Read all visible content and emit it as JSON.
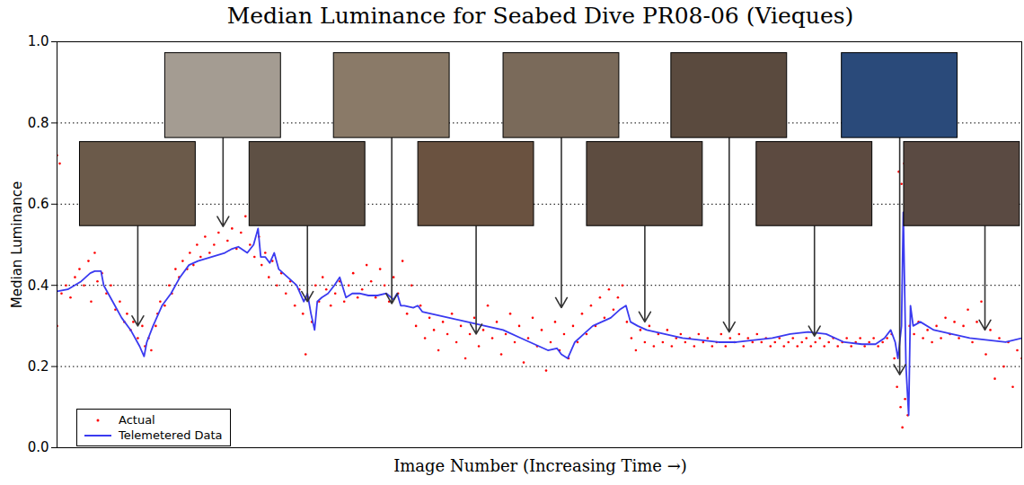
{
  "chart_data": {
    "type": "scatter",
    "title": "Median Luminance for Seabed Dive PR08-06 (Vieques)",
    "x_label": "Image Number (Increasing Time →)",
    "y_label": "Median Luminance",
    "xlim": [
      0,
      1075
    ],
    "xticks": [],
    "ylim": [
      0,
      1
    ],
    "yticks": [
      {
        "value": 0,
        "label": "0.0"
      },
      {
        "value": 0.2,
        "label": "0.2"
      },
      {
        "value": 0.4,
        "label": "0.4"
      },
      {
        "value": 0.6,
        "label": "0.6"
      },
      {
        "value": 0.8,
        "label": "0.8"
      },
      {
        "value": 1,
        "label": "1.0"
      }
    ],
    "grid": true,
    "legend": "lower left",
    "tick_labels": "y",
    "series": [
      {
        "name": "Actual",
        "type": "scatter",
        "color": "#ff0000",
        "marker": "dot",
        "x": [
          0,
          0,
          3,
          5,
          10,
          15,
          20,
          25,
          30,
          35,
          38,
          42,
          45,
          50,
          55,
          60,
          65,
          70,
          75,
          78,
          82,
          85,
          90,
          95,
          98,
          102,
          105,
          110,
          112,
          115,
          120,
          125,
          128,
          132,
          136,
          140,
          145,
          148,
          152,
          156,
          160,
          165,
          170,
          175,
          180,
          185,
          190,
          195,
          200,
          205,
          210,
          215,
          220,
          225,
          228,
          232,
          236,
          240,
          245,
          250,
          255,
          260,
          265,
          270,
          274,
          277,
          280,
          284,
          288,
          292,
          296,
          300,
          305,
          310,
          315,
          320,
          325,
          330,
          335,
          340,
          345,
          350,
          355,
          360,
          365,
          370,
          375,
          380,
          385,
          390,
          395,
          400,
          405,
          410,
          415,
          420,
          425,
          430,
          435,
          440,
          445,
          450,
          455,
          460,
          465,
          470,
          475,
          480,
          485,
          490,
          495,
          500,
          505,
          510,
          515,
          520,
          525,
          530,
          535,
          540,
          545,
          550,
          555,
          560,
          565,
          570,
          575,
          580,
          585,
          590,
          595,
          600,
          605,
          610,
          615,
          620,
          625,
          630,
          635,
          640,
          645,
          650,
          655,
          660,
          665,
          670,
          675,
          680,
          685,
          690,
          695,
          700,
          705,
          710,
          715,
          720,
          725,
          730,
          735,
          740,
          745,
          750,
          755,
          760,
          765,
          770,
          775,
          780,
          785,
          790,
          795,
          800,
          805,
          810,
          815,
          820,
          825,
          830,
          835,
          840,
          845,
          850,
          855,
          860,
          865,
          870,
          875,
          880,
          885,
          890,
          895,
          900,
          905,
          910,
          915,
          920,
          925,
          930,
          933,
          936,
          938,
          940,
          941,
          942,
          944,
          945,
          946,
          948,
          950,
          955,
          960,
          965,
          970,
          975,
          980,
          985,
          990,
          995,
          1000,
          1005,
          1010,
          1015,
          1020,
          1025,
          1030,
          1035,
          1040,
          1045,
          1050,
          1055,
          1060,
          1065,
          1070,
          1075
        ],
        "values": [
          0.72,
          0.3,
          0.7,
          0.38,
          0.4,
          0.37,
          0.42,
          0.44,
          0.4,
          0.46,
          0.36,
          0.48,
          0.41,
          0.43,
          0.38,
          0.4,
          0.34,
          0.36,
          0.31,
          0.33,
          0.29,
          0.31,
          0.27,
          0.3,
          0.25,
          0.27,
          0.24,
          0.3,
          0.33,
          0.36,
          0.35,
          0.4,
          0.38,
          0.44,
          0.42,
          0.46,
          0.44,
          0.48,
          0.45,
          0.5,
          0.47,
          0.52,
          0.48,
          0.5,
          0.53,
          0.55,
          0.51,
          0.54,
          0.49,
          0.53,
          0.57,
          0.5,
          0.47,
          0.52,
          0.45,
          0.48,
          0.42,
          0.46,
          0.4,
          0.43,
          0.38,
          0.41,
          0.35,
          0.39,
          0.33,
          0.23,
          0.37,
          0.31,
          0.4,
          0.36,
          0.42,
          0.39,
          0.35,
          0.38,
          0.41,
          0.36,
          0.4,
          0.43,
          0.37,
          0.39,
          0.45,
          0.41,
          0.37,
          0.44,
          0.4,
          0.36,
          0.42,
          0.38,
          0.46,
          0.33,
          0.4,
          0.3,
          0.35,
          0.27,
          0.32,
          0.29,
          0.24,
          0.31,
          0.28,
          0.33,
          0.26,
          0.3,
          0.22,
          0.28,
          0.32,
          0.25,
          0.29,
          0.35,
          0.27,
          0.31,
          0.23,
          0.28,
          0.33,
          0.26,
          0.3,
          0.21,
          0.27,
          0.32,
          0.25,
          0.29,
          0.19,
          0.26,
          0.31,
          0.24,
          0.28,
          0.22,
          0.3,
          0.26,
          0.33,
          0.28,
          0.35,
          0.3,
          0.37,
          0.32,
          0.39,
          0.34,
          0.37,
          0.4,
          0.31,
          0.27,
          0.24,
          0.29,
          0.26,
          0.3,
          0.25,
          0.28,
          0.26,
          0.29,
          0.25,
          0.27,
          0.28,
          0.26,
          0.27,
          0.25,
          0.28,
          0.26,
          0.27,
          0.25,
          0.26,
          0.28,
          0.25,
          0.27,
          0.26,
          0.28,
          0.25,
          0.27,
          0.26,
          0.28,
          0.26,
          0.27,
          0.25,
          0.26,
          0.27,
          0.25,
          0.26,
          0.27,
          0.25,
          0.26,
          0.27,
          0.25,
          0.26,
          0.27,
          0.25,
          0.26,
          0.27,
          0.25,
          0.26,
          0.27,
          0.25,
          0.26,
          0.27,
          0.25,
          0.26,
          0.27,
          0.25,
          0.26,
          0.27,
          0.28,
          0.22,
          0.15,
          0.68,
          0.1,
          0.65,
          0.05,
          0.7,
          0.12,
          0.62,
          0.08,
          0.3,
          0.28,
          0.31,
          0.27,
          0.29,
          0.26,
          0.3,
          0.27,
          0.32,
          0.28,
          0.31,
          0.27,
          0.3,
          0.34,
          0.26,
          0.31,
          0.36,
          0.23,
          0.29,
          0.17,
          0.27,
          0.2,
          0.26,
          0.15,
          0.24,
          0.22
        ]
      },
      {
        "name": "Telemetered Data",
        "type": "line",
        "color": "#3a3af0",
        "line_style": "solid",
        "x": [
          0,
          12,
          27,
          37,
          42,
          49,
          52,
          62,
          72,
          82,
          92,
          97,
          100,
          107,
          117,
          127,
          137,
          147,
          157,
          172,
          187,
          195,
          202,
          212,
          219,
          224,
          227,
          232,
          237,
          242,
          247,
          252,
          257,
          267,
          275,
          279,
          283,
          287,
          290,
          295,
          302,
          309,
          315,
          322,
          329,
          337,
          347,
          357,
          367,
          375,
          379,
          383,
          387,
          397,
          402,
          407,
          417,
          437,
          457,
          477,
          497,
          517,
          527,
          537,
          547,
          557,
          562,
          569,
          577,
          587,
          597,
          607,
          617,
          627,
          634,
          639,
          647,
          657,
          677,
          697,
          717,
          737,
          757,
          777,
          797,
          817,
          837,
          857,
          877,
          897,
          912,
          922,
          929,
          934,
          937,
          941,
          943,
          946,
          949,
          951,
          954,
          962,
          977,
          997,
          1017,
          1037,
          1057,
          1075
        ],
        "values": [
          0.385,
          0.39,
          0.41,
          0.43,
          0.435,
          0.435,
          0.4,
          0.36,
          0.32,
          0.29,
          0.25,
          0.225,
          0.26,
          0.3,
          0.35,
          0.38,
          0.42,
          0.45,
          0.46,
          0.47,
          0.48,
          0.49,
          0.495,
          0.48,
          0.5,
          0.54,
          0.47,
          0.47,
          0.455,
          0.48,
          0.44,
          0.43,
          0.42,
          0.4,
          0.36,
          0.38,
          0.33,
          0.29,
          0.36,
          0.37,
          0.38,
          0.4,
          0.42,
          0.37,
          0.38,
          0.38,
          0.375,
          0.375,
          0.38,
          0.365,
          0.38,
          0.35,
          0.35,
          0.345,
          0.35,
          0.335,
          0.33,
          0.32,
          0.31,
          0.3,
          0.29,
          0.27,
          0.26,
          0.25,
          0.24,
          0.245,
          0.23,
          0.22,
          0.26,
          0.28,
          0.3,
          0.31,
          0.32,
          0.34,
          0.35,
          0.31,
          0.3,
          0.29,
          0.28,
          0.27,
          0.265,
          0.26,
          0.26,
          0.265,
          0.27,
          0.28,
          0.285,
          0.28,
          0.26,
          0.255,
          0.255,
          0.27,
          0.29,
          0.26,
          0.22,
          0.3,
          0.58,
          0.2,
          0.08,
          0.35,
          0.3,
          0.31,
          0.29,
          0.28,
          0.27,
          0.265,
          0.26,
          0.27
        ]
      }
    ],
    "markers": {
      "x": [
        90,
        185,
        279,
        373,
        467,
        562,
        655,
        749,
        844,
        939,
        1034
      ],
      "y": [
        0.3,
        0.545,
        0.36,
        0.355,
        0.28,
        0.345,
        0.31,
        0.285,
        0.275,
        0.18,
        0.29
      ],
      "colors": [
        "#6b5a4a",
        "#a49c92",
        "#5e5044",
        "#8a7a68",
        "#6a5240",
        "#7a6a5a",
        "#5d4c40",
        "#5a4a3e",
        "#5c4a40",
        "#2a4a7a",
        "#5a4a42"
      ]
    }
  }
}
